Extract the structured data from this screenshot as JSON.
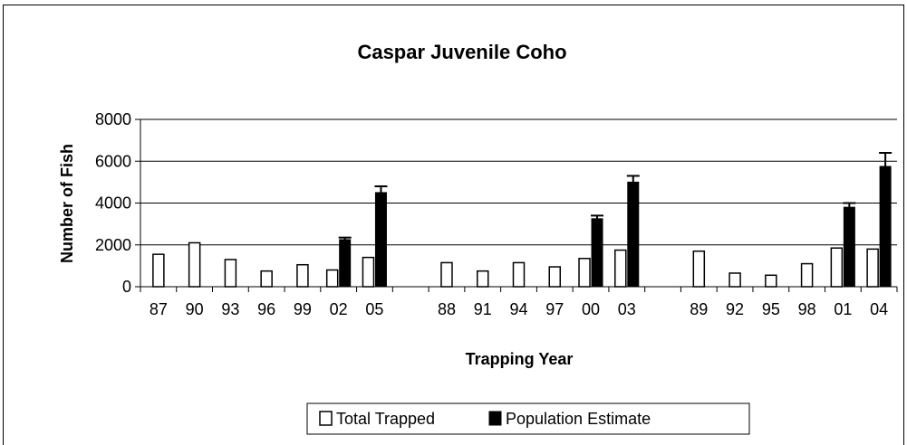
{
  "chart_data": {
    "type": "bar",
    "title": "Caspar Juvenile Coho",
    "xlabel": "Trapping Year",
    "ylabel": "Number of Fish",
    "ylim": [
      0,
      8000
    ],
    "yticks": [
      0,
      2000,
      4000,
      6000,
      8000
    ],
    "gridlines": true,
    "legend_position": "bottom",
    "groups": [
      [
        "87",
        "90",
        "93",
        "96",
        "99",
        "02",
        "05"
      ],
      [
        "88",
        "91",
        "94",
        "97",
        "00",
        "03"
      ],
      [
        "89",
        "92",
        "95",
        "98",
        "01",
        "04"
      ]
    ],
    "categories": [
      "87",
      "90",
      "93",
      "96",
      "99",
      "02",
      "05",
      "88",
      "91",
      "94",
      "97",
      "00",
      "03",
      "89",
      "92",
      "95",
      "98",
      "01",
      "04"
    ],
    "series": [
      {
        "name": "Total Trapped",
        "color": "#ffffff",
        "values": [
          1550,
          2100,
          1300,
          750,
          1050,
          800,
          1400,
          1150,
          750,
          1150,
          950,
          1350,
          1750,
          1700,
          650,
          550,
          1100,
          1850,
          1800
        ]
      },
      {
        "name": "Population Estimate",
        "color": "#000000",
        "values": [
          null,
          null,
          null,
          null,
          null,
          2250,
          4500,
          null,
          null,
          null,
          null,
          3250,
          5000,
          null,
          null,
          null,
          null,
          3800,
          5750
        ],
        "error_upper": [
          null,
          null,
          null,
          null,
          null,
          2350,
          4800,
          null,
          null,
          null,
          null,
          3400,
          5300,
          null,
          null,
          null,
          null,
          4000,
          6400
        ]
      }
    ]
  }
}
